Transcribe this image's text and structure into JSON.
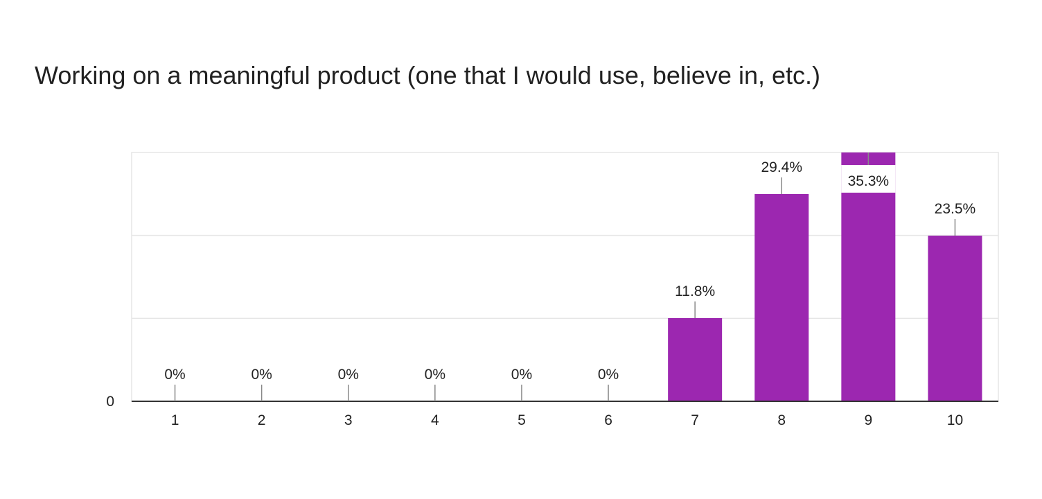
{
  "chart_data": {
    "type": "bar",
    "title": "Working on a meaningful product (one that I would use, believe in, etc.)",
    "categories": [
      "1",
      "2",
      "3",
      "4",
      "5",
      "6",
      "7",
      "8",
      "9",
      "10"
    ],
    "values": [
      0,
      0,
      0,
      0,
      0,
      0,
      11.8,
      29.4,
      35.3,
      23.5
    ],
    "data_labels": [
      "0%",
      "0%",
      "0%",
      "0%",
      "0%",
      "0%",
      "11.8%",
      "29.4%",
      "35.3%",
      "23.5%"
    ],
    "y_tick_labels": [
      "0"
    ],
    "ylim": [
      0,
      35.3
    ],
    "grid": true,
    "colors": {
      "bar": "#9c27b0",
      "grid": "#e6e6e6",
      "axis": "#333333",
      "leader": "#888888"
    }
  }
}
